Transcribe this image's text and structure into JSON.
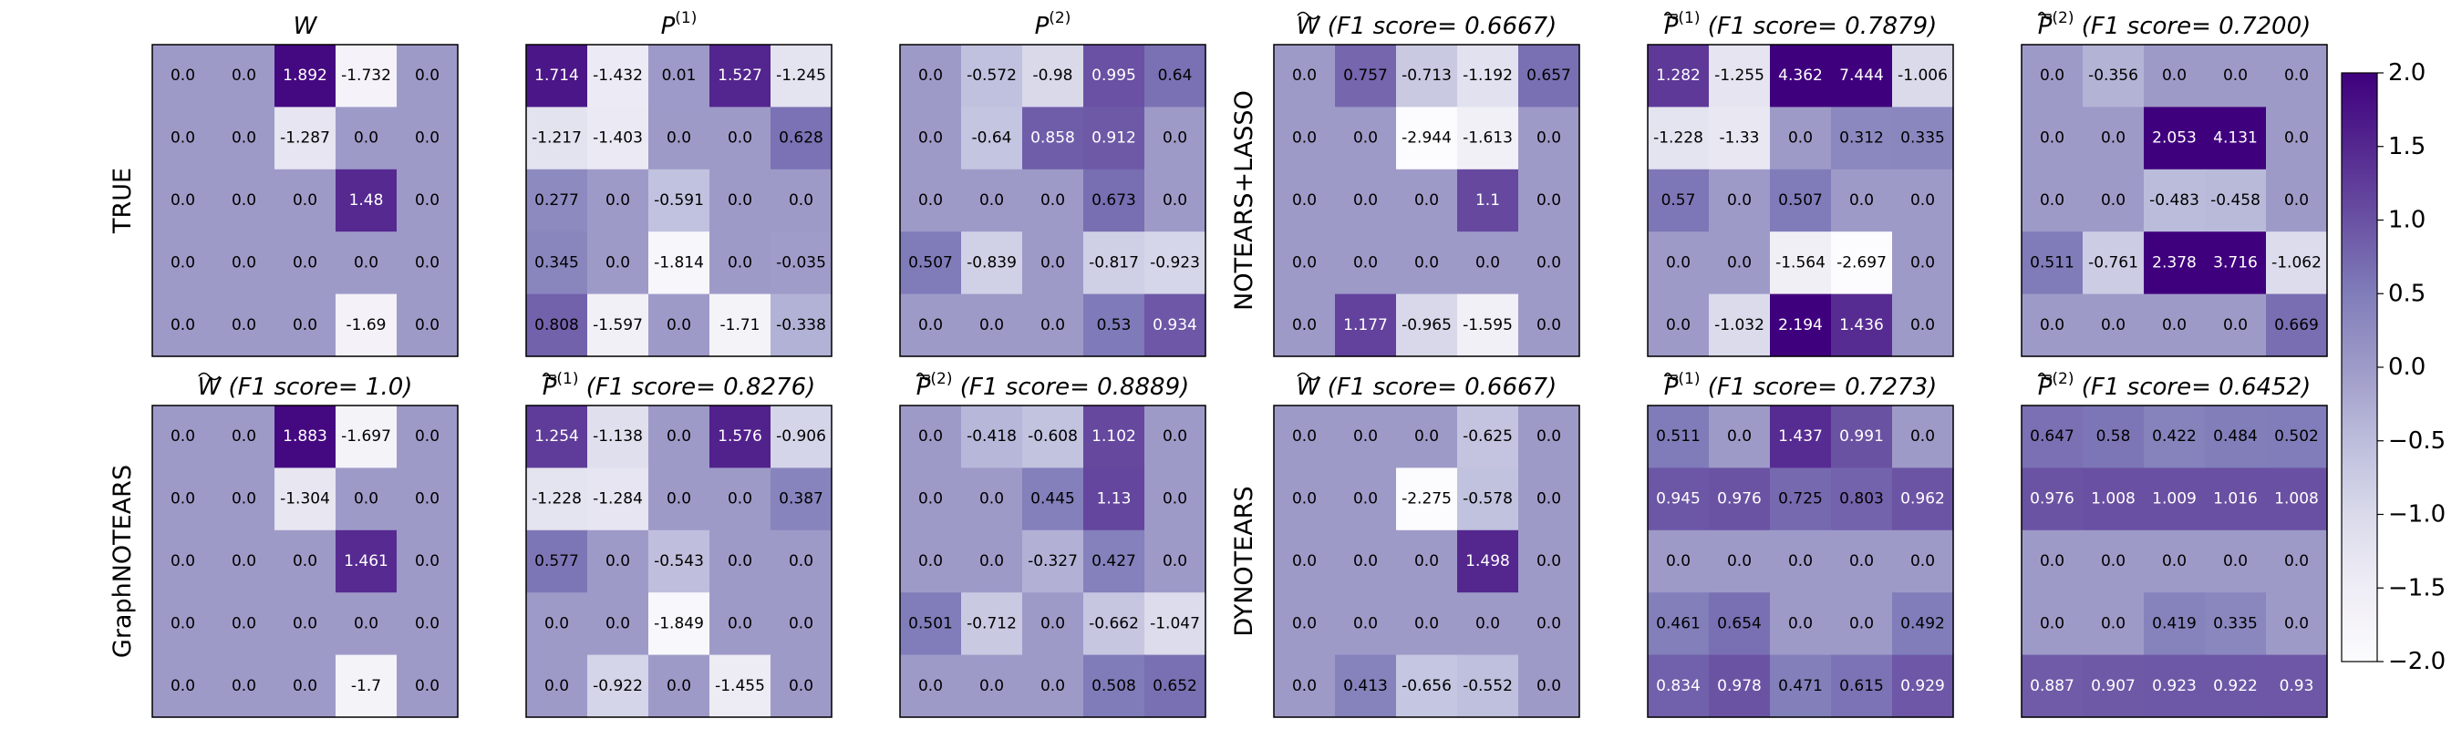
{
  "chart_data": {
    "type": "heatmap",
    "colormap": "Purples",
    "vmin": -2.0,
    "vmax": 2.0,
    "colorbar": {
      "ticks": [
        2.0,
        1.5,
        1.0,
        0.5,
        0.0,
        -0.5,
        -1.0,
        -1.5,
        -2.0
      ],
      "tick_labels": [
        "2.0",
        "1.5",
        "1.0",
        "0.5",
        "0.0",
        "−0.5",
        "−1.0",
        "−1.5",
        "−2.0"
      ]
    },
    "row_labels": [
      {
        "id": "true",
        "text": "TRUE"
      },
      {
        "id": "notears-lasso",
        "text": "NOTEARS+LASSO"
      },
      {
        "id": "graphnotears",
        "text": "GraphNOTEARS"
      },
      {
        "id": "dynotears",
        "text": "DYNOTEARS"
      }
    ],
    "panels": [
      {
        "id": "true-w",
        "sym": "W",
        "sup": "",
        "tilde": false,
        "bar": false,
        "f1": "",
        "values": [
          [
            0.0,
            0.0,
            1.892,
            -1.732,
            0.0
          ],
          [
            0.0,
            0.0,
            -1.287,
            0.0,
            0.0
          ],
          [
            0.0,
            0.0,
            0.0,
            1.48,
            0.0
          ],
          [
            0.0,
            0.0,
            0.0,
            0.0,
            0.0
          ],
          [
            0.0,
            0.0,
            0.0,
            -1.69,
            0.0
          ]
        ],
        "labels": [
          [
            "0.0",
            "0.0",
            "1.892",
            "-1.732",
            "0.0"
          ],
          [
            "0.0",
            "0.0",
            "-1.287",
            "0.0",
            "0.0"
          ],
          [
            "0.0",
            "0.0",
            "0.0",
            "1.48",
            "0.0"
          ],
          [
            "0.0",
            "0.0",
            "0.0",
            "0.0",
            "0.0"
          ],
          [
            "0.0",
            "0.0",
            "0.0",
            "-1.69",
            "0.0"
          ]
        ]
      },
      {
        "id": "true-p1",
        "sym": "P",
        "sup": "(1)",
        "tilde": false,
        "bar": false,
        "f1": "",
        "values": [
          [
            1.714,
            -1.432,
            0.01,
            1.527,
            -1.245
          ],
          [
            -1.217,
            -1.403,
            0.0,
            0.0,
            0.628
          ],
          [
            0.277,
            0.0,
            -0.591,
            0.0,
            0.0
          ],
          [
            0.345,
            0.0,
            -1.814,
            0.0,
            -0.035
          ],
          [
            0.808,
            -1.597,
            0.0,
            -1.71,
            -0.338
          ]
        ],
        "labels": [
          [
            "1.714",
            "-1.432",
            "0.01",
            "1.527",
            "-1.245"
          ],
          [
            "-1.217",
            "-1.403",
            "0.0",
            "0.0",
            "0.628"
          ],
          [
            "0.277",
            "0.0",
            "-0.591",
            "0.0",
            "0.0"
          ],
          [
            "0.345",
            "0.0",
            "-1.814",
            "0.0",
            "-0.035"
          ],
          [
            "0.808",
            "-1.597",
            "0.0",
            "-1.71",
            "-0.338"
          ]
        ]
      },
      {
        "id": "true-p2",
        "sym": "P",
        "sup": "(2)",
        "tilde": false,
        "bar": false,
        "f1": "",
        "values": [
          [
            0.0,
            -0.572,
            -0.98,
            0.995,
            0.64
          ],
          [
            0.0,
            -0.64,
            0.858,
            0.912,
            0.0
          ],
          [
            0.0,
            0.0,
            0.0,
            0.673,
            0.0
          ],
          [
            0.507,
            -0.839,
            0.0,
            -0.817,
            -0.923
          ],
          [
            0.0,
            0.0,
            0.0,
            0.53,
            0.934
          ]
        ],
        "labels": [
          [
            "0.0",
            "-0.572",
            "-0.98",
            "0.995",
            "0.64"
          ],
          [
            "0.0",
            "-0.64",
            "0.858",
            "0.912",
            "0.0"
          ],
          [
            "0.0",
            "0.0",
            "0.0",
            "0.673",
            "0.0"
          ],
          [
            "0.507",
            "-0.839",
            "0.0",
            "-0.817",
            "-0.923"
          ],
          [
            "0.0",
            "0.0",
            "0.0",
            "0.53",
            "0.934"
          ]
        ]
      },
      {
        "id": "notears-w",
        "sym": "W",
        "sup": "",
        "tilde": true,
        "bar": false,
        "f1": "(F1 score= 0.6667)",
        "values": [
          [
            0.0,
            0.757,
            -0.713,
            -1.192,
            0.657
          ],
          [
            0.0,
            0.0,
            -2.944,
            -1.613,
            0.0
          ],
          [
            0.0,
            0.0,
            0.0,
            1.1,
            0.0
          ],
          [
            0.0,
            0.0,
            0.0,
            0.0,
            0.0
          ],
          [
            0.0,
            1.177,
            -0.965,
            -1.595,
            0.0
          ]
        ],
        "labels": [
          [
            "0.0",
            "0.757",
            "-0.713",
            "-1.192",
            "0.657"
          ],
          [
            "0.0",
            "0.0",
            "-2.944",
            "-1.613",
            "0.0"
          ],
          [
            "0.0",
            "0.0",
            "0.0",
            "1.1",
            "0.0"
          ],
          [
            "0.0",
            "0.0",
            "0.0",
            "0.0",
            "0.0"
          ],
          [
            "0.0",
            "1.177",
            "-0.965",
            "-1.595",
            "0.0"
          ]
        ]
      },
      {
        "id": "notears-p1",
        "sym": "P",
        "sup": "(1)",
        "tilde": true,
        "bar": true,
        "f1": "(F1 score= 0.7879)",
        "values": [
          [
            1.282,
            -1.255,
            4.362,
            7.444,
            -1.006
          ],
          [
            -1.228,
            -1.33,
            0.0,
            0.312,
            0.335
          ],
          [
            0.57,
            0.0,
            0.507,
            0.0,
            0.0
          ],
          [
            0.0,
            0.0,
            -1.564,
            -2.697,
            0.0
          ],
          [
            0.0,
            -1.032,
            2.194,
            1.436,
            0.0
          ]
        ],
        "labels": [
          [
            "1.282",
            "-1.255",
            "4.362",
            "7.444",
            "-1.006"
          ],
          [
            "-1.228",
            "-1.33",
            "0.0",
            "0.312",
            "0.335"
          ],
          [
            "0.57",
            "0.0",
            "0.507",
            "0.0",
            "0.0"
          ],
          [
            "0.0",
            "0.0",
            "-1.564",
            "-2.697",
            "0.0"
          ],
          [
            "0.0",
            "-1.032",
            "2.194",
            "1.436",
            "0.0"
          ]
        ]
      },
      {
        "id": "notears-p2",
        "sym": "P",
        "sup": "(2)",
        "tilde": true,
        "bar": true,
        "f1": "(F1 score= 0.7200)",
        "values": [
          [
            0.0,
            -0.356,
            0.0,
            0.0,
            0.0
          ],
          [
            0.0,
            0.0,
            2.053,
            4.131,
            0.0
          ],
          [
            0.0,
            0.0,
            -0.483,
            -0.458,
            0.0
          ],
          [
            0.511,
            -0.761,
            2.378,
            3.716,
            -1.062
          ],
          [
            0.0,
            0.0,
            0.0,
            0.0,
            0.669
          ]
        ],
        "labels": [
          [
            "0.0",
            "-0.356",
            "0.0",
            "0.0",
            "0.0"
          ],
          [
            "0.0",
            "0.0",
            "2.053",
            "4.131",
            "0.0"
          ],
          [
            "0.0",
            "0.0",
            "-0.483",
            "-0.458",
            "0.0"
          ],
          [
            "0.511",
            "-0.761",
            "2.378",
            "3.716",
            "-1.062"
          ],
          [
            "0.0",
            "0.0",
            "0.0",
            "0.0",
            "0.669"
          ]
        ]
      },
      {
        "id": "graphnotears-w",
        "sym": "W",
        "sup": "",
        "tilde": true,
        "bar": false,
        "f1": "(F1 score= 1.0)",
        "values": [
          [
            0.0,
            0.0,
            1.883,
            -1.697,
            0.0
          ],
          [
            0.0,
            0.0,
            -1.304,
            0.0,
            0.0
          ],
          [
            0.0,
            0.0,
            0.0,
            1.461,
            0.0
          ],
          [
            0.0,
            0.0,
            0.0,
            0.0,
            0.0
          ],
          [
            0.0,
            0.0,
            0.0,
            -1.7,
            0.0
          ]
        ],
        "labels": [
          [
            "0.0",
            "0.0",
            "1.883",
            "-1.697",
            "0.0"
          ],
          [
            "0.0",
            "0.0",
            "-1.304",
            "0.0",
            "0.0"
          ],
          [
            "0.0",
            "0.0",
            "0.0",
            "1.461",
            "0.0"
          ],
          [
            "0.0",
            "0.0",
            "0.0",
            "0.0",
            "0.0"
          ],
          [
            "0.0",
            "0.0",
            "0.0",
            "-1.7",
            "0.0"
          ]
        ]
      },
      {
        "id": "graphnotears-p1",
        "sym": "P",
        "sup": "(1)",
        "tilde": true,
        "bar": true,
        "f1": "(F1 score= 0.8276)",
        "values": [
          [
            1.254,
            -1.138,
            0.0,
            1.576,
            -0.906
          ],
          [
            -1.228,
            -1.284,
            0.0,
            0.0,
            0.387
          ],
          [
            0.577,
            0.0,
            -0.543,
            0.0,
            0.0
          ],
          [
            0.0,
            0.0,
            -1.849,
            0.0,
            0.0
          ],
          [
            0.0,
            -0.922,
            0.0,
            -1.455,
            0.0
          ]
        ],
        "labels": [
          [
            "1.254",
            "-1.138",
            "0.0",
            "1.576",
            "-0.906"
          ],
          [
            "-1.228",
            "-1.284",
            "0.0",
            "0.0",
            "0.387"
          ],
          [
            "0.577",
            "0.0",
            "-0.543",
            "0.0",
            "0.0"
          ],
          [
            "0.0",
            "0.0",
            "-1.849",
            "0.0",
            "0.0"
          ],
          [
            "0.0",
            "-0.922",
            "0.0",
            "-1.455",
            "0.0"
          ]
        ]
      },
      {
        "id": "graphnotears-p2",
        "sym": "P",
        "sup": "(2)",
        "tilde": true,
        "bar": true,
        "f1": "(F1 score= 0.8889)",
        "values": [
          [
            0.0,
            -0.418,
            -0.608,
            1.102,
            0.0
          ],
          [
            0.0,
            0.0,
            0.445,
            1.13,
            0.0
          ],
          [
            0.0,
            0.0,
            -0.327,
            0.427,
            0.0
          ],
          [
            0.501,
            -0.712,
            0.0,
            -0.662,
            -1.047
          ],
          [
            0.0,
            0.0,
            0.0,
            0.508,
            0.652
          ]
        ],
        "labels": [
          [
            "0.0",
            "-0.418",
            "-0.608",
            "1.102",
            "0.0"
          ],
          [
            "0.0",
            "0.0",
            "0.445",
            "1.13",
            "0.0"
          ],
          [
            "0.0",
            "0.0",
            "-0.327",
            "0.427",
            "0.0"
          ],
          [
            "0.501",
            "-0.712",
            "0.0",
            "-0.662",
            "-1.047"
          ],
          [
            "0.0",
            "0.0",
            "0.0",
            "0.508",
            "0.652"
          ]
        ]
      },
      {
        "id": "dynotears-w",
        "sym": "W",
        "sup": "",
        "tilde": true,
        "bar": false,
        "f1": "(F1 score= 0.6667)",
        "values": [
          [
            0.0,
            0.0,
            0.0,
            -0.625,
            0.0
          ],
          [
            0.0,
            0.0,
            -2.275,
            -0.578,
            0.0
          ],
          [
            0.0,
            0.0,
            0.0,
            1.498,
            0.0
          ],
          [
            0.0,
            0.0,
            0.0,
            0.0,
            0.0
          ],
          [
            0.0,
            0.413,
            -0.656,
            -0.552,
            0.0
          ]
        ],
        "labels": [
          [
            "0.0",
            "0.0",
            "0.0",
            "-0.625",
            "0.0"
          ],
          [
            "0.0",
            "0.0",
            "-2.275",
            "-0.578",
            "0.0"
          ],
          [
            "0.0",
            "0.0",
            "0.0",
            "1.498",
            "0.0"
          ],
          [
            "0.0",
            "0.0",
            "0.0",
            "0.0",
            "0.0"
          ],
          [
            "0.0",
            "0.413",
            "-0.656",
            "-0.552",
            "0.0"
          ]
        ]
      },
      {
        "id": "dynotears-p1",
        "sym": "P",
        "sup": "(1)",
        "tilde": true,
        "bar": true,
        "f1": "(F1 score= 0.7273)",
        "values": [
          [
            0.511,
            0.0,
            1.437,
            0.991,
            0.0
          ],
          [
            0.945,
            0.976,
            0.725,
            0.803,
            0.962
          ],
          [
            0.0,
            0.0,
            0.0,
            0.0,
            0.0
          ],
          [
            0.461,
            0.654,
            0.0,
            0.0,
            0.492
          ],
          [
            0.834,
            0.978,
            0.471,
            0.615,
            0.929
          ]
        ],
        "labels": [
          [
            "0.511",
            "0.0",
            "1.437",
            "0.991",
            "0.0"
          ],
          [
            "0.945",
            "0.976",
            "0.725",
            "0.803",
            "0.962"
          ],
          [
            "0.0",
            "0.0",
            "0.0",
            "0.0",
            "0.0"
          ],
          [
            "0.461",
            "0.654",
            "0.0",
            "0.0",
            "0.492"
          ],
          [
            "0.834",
            "0.978",
            "0.471",
            "0.615",
            "0.929"
          ]
        ]
      },
      {
        "id": "dynotears-p2",
        "sym": "P",
        "sup": "(2)",
        "tilde": true,
        "bar": true,
        "f1": "(F1 score= 0.6452)",
        "values": [
          [
            0.647,
            0.58,
            0.422,
            0.484,
            0.502
          ],
          [
            0.976,
            1.008,
            1.009,
            1.016,
            1.008
          ],
          [
            0.0,
            0.0,
            0.0,
            0.0,
            0.0
          ],
          [
            0.0,
            0.0,
            0.419,
            0.335,
            0.0
          ],
          [
            0.887,
            0.907,
            0.923,
            0.922,
            0.93
          ]
        ],
        "labels": [
          [
            "0.647",
            "0.58",
            "0.422",
            "0.484",
            "0.502"
          ],
          [
            "0.976",
            "1.008",
            "1.009",
            "1.016",
            "1.008"
          ],
          [
            "0.0",
            "0.0",
            "0.0",
            "0.0",
            "0.0"
          ],
          [
            "0.0",
            "0.0",
            "0.419",
            "0.335",
            "0.0"
          ],
          [
            "0.887",
            "0.907",
            "0.923",
            "0.922",
            "0.93"
          ]
        ]
      }
    ]
  }
}
